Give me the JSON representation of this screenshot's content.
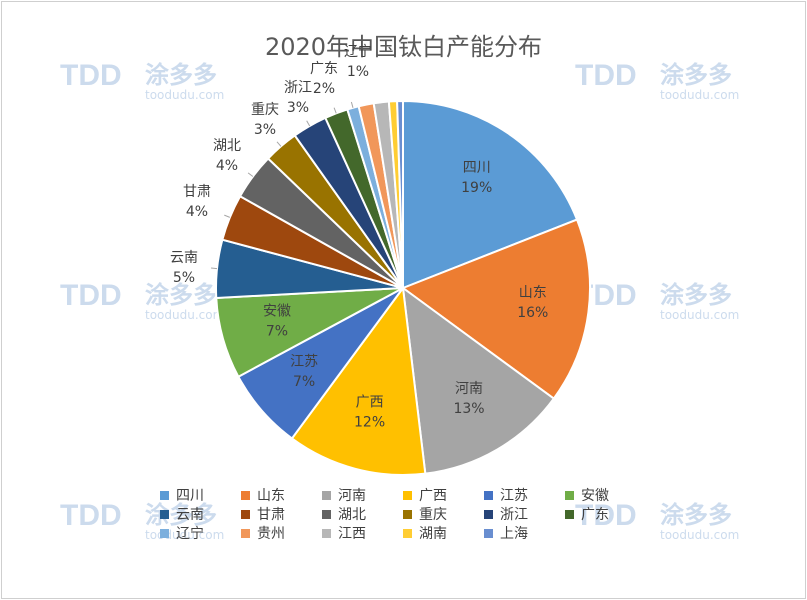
{
  "chart_data": {
    "type": "pie",
    "title": "2020年中国钛白产能分布",
    "slices": [
      {
        "name": "四川",
        "value": 19,
        "label": "19%",
        "color": "#5b9bd5"
      },
      {
        "name": "山东",
        "value": 16,
        "label": "16%",
        "color": "#ed7d31"
      },
      {
        "name": "河南",
        "value": 13,
        "label": "13%",
        "color": "#a5a5a5"
      },
      {
        "name": "广西",
        "value": 12,
        "label": "12%",
        "color": "#ffc000"
      },
      {
        "name": "江苏",
        "value": 7,
        "label": "7%",
        "color": "#4472c4"
      },
      {
        "name": "安徽",
        "value": 7,
        "label": "7%",
        "color": "#70ad47"
      },
      {
        "name": "云南",
        "value": 5,
        "label": "5%",
        "color": "#255e91"
      },
      {
        "name": "甘肃",
        "value": 4,
        "label": "4%",
        "color": "#9e480e"
      },
      {
        "name": "湖北",
        "value": 4,
        "label": "4%",
        "color": "#636363"
      },
      {
        "name": "重庆",
        "value": 3,
        "label": "3%",
        "color": "#997300"
      },
      {
        "name": "浙江",
        "value": 3,
        "label": "3%",
        "color": "#264478"
      },
      {
        "name": "广东",
        "value": 2,
        "label": "2%",
        "color": "#43682b"
      },
      {
        "name": "辽宁",
        "value": 1,
        "label": "1%",
        "color": "#7cafdd"
      },
      {
        "name": "贵州",
        "value": 1.3,
        "label": "",
        "color": "#f1975a"
      },
      {
        "name": "江西",
        "value": 1.3,
        "label": "",
        "color": "#b7b7b7"
      },
      {
        "name": "湖南",
        "value": 0.7,
        "label": "",
        "color": "#ffcd33"
      },
      {
        "name": "上海",
        "value": 0.5,
        "label": "",
        "color": "#698ed0"
      }
    ],
    "legend_position": "bottom"
  },
  "watermark": {
    "logo": "TDD",
    "name": "涂多多",
    "url": "toodudu.com"
  }
}
